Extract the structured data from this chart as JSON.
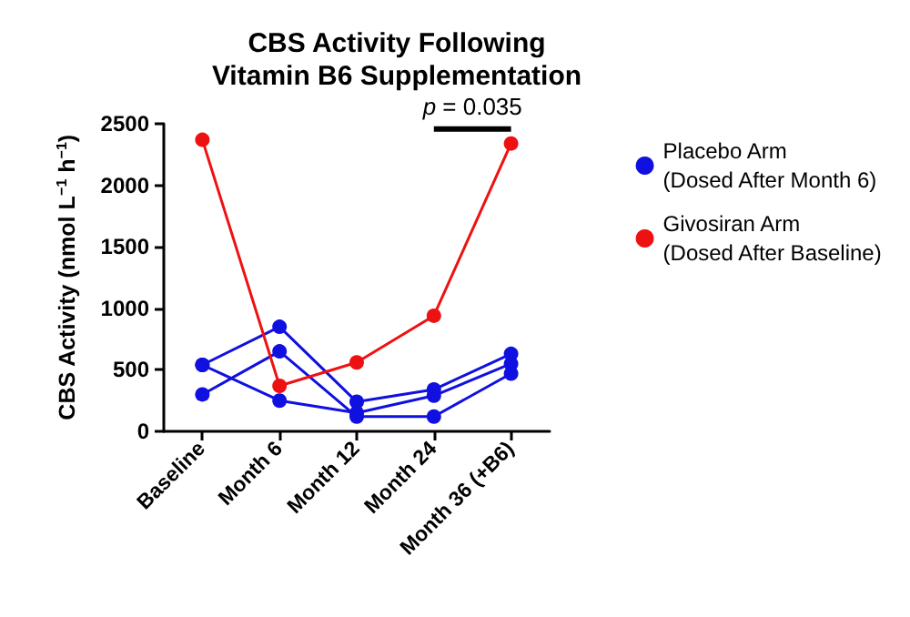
{
  "chart_data": {
    "type": "line",
    "title": "CBS Activity Following\nVitamin B6 Supplementation",
    "ylabel": "CBS Activity (nmol L$^{−1}$ h$^{−1}$)",
    "categories": [
      "Baseline",
      "Month 6",
      "Month 12",
      "Month 24",
      "Month 36 (+B6)"
    ],
    "series": [
      {
        "name": "Placebo Arm\n(Dosed After Month 6)",
        "color": "#1010e0",
        "values": [
          540,
          250,
          150,
          290,
          550
        ]
      },
      {
        "color": "#1010e0",
        "values": [
          540,
          850,
          240,
          340,
          630
        ]
      },
      {
        "color": "#1010e0",
        "values": [
          300,
          650,
          120,
          120,
          470
        ]
      },
      {
        "name": "Givosiran Arm\n(Dosed After Baseline)",
        "color": "#ee1111",
        "values": [
          2370,
          370,
          560,
          940,
          2340
        ]
      }
    ],
    "ylim": [
      0,
      2500
    ],
    "yticks": [
      0,
      500,
      1000,
      1500,
      2000,
      2500
    ],
    "annotations": [
      {
        "text": "p = 0.035",
        "x": "Month 36 (+B6)",
        "y": 2340
      }
    ],
    "grid": false,
    "legend": "right",
    "marker": "circle",
    "line_style": "solid"
  }
}
